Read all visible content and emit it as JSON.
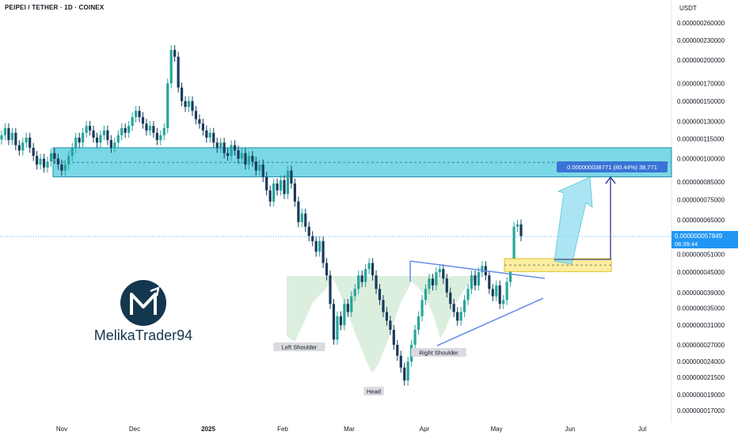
{
  "header": {
    "symbol_line": "PEIPEI / TETHER · 1D · COINEX",
    "quote_currency": "USDT"
  },
  "watermark": {
    "brand": "MelikaTrader94",
    "logo_icon": "m-arrow-logo-icon"
  },
  "price_tag": {
    "value": "0.000000057849",
    "countdown": "06:39:44"
  },
  "measure_label": "0.000000038771 (80.44%) 38,771",
  "colors": {
    "up": "#26a69a",
    "up_dark": "#1d9b8f",
    "down": "#1b3a5c",
    "zone_fill": "#4ec9de",
    "zone_border": "#1d8fa8",
    "target_box": "#3a73d6",
    "price_tag": "#2196f3",
    "trend_line": "#6b8fe8",
    "arrow_line": "#1f2a8c",
    "yellow_zone": "#fbeea0",
    "hs_fill": "#d6ecd9"
  },
  "chart_data": {
    "type": "candlestick",
    "title": "PEIPEI / TETHER · 1D · COINEX",
    "ylabel": "USDT",
    "y_scale": "log",
    "x_ticks": [
      "Nov",
      "Dec",
      "2025",
      "Feb",
      "Mar",
      "Apr",
      "May",
      "Jun",
      "Jul"
    ],
    "y_ticks": [
      "0.000000260000",
      "0.000000230000",
      "0.000000200000",
      "0.000000170000",
      "0.000000150000",
      "0.000000130000",
      "0.000000115000",
      "0.000000100000",
      "0.000000085000",
      "0.000000075000",
      "0.000000065000",
      "0.000000051000",
      "0.000000045000",
      "0.000000039000",
      "0.000000035000",
      "0.000000031000",
      "0.000000027000",
      "0.000000024000",
      "0.000000021500",
      "0.000000019000",
      "0.000000017000"
    ],
    "last_price": 5.7849e-08,
    "annotations": [
      "Left Shoulder",
      "Head",
      "Right Shoulder"
    ],
    "resistance_zone": [
      8.8e-08,
      1.08e-07
    ],
    "breakout_zone": [
      4.52e-08,
      4.95e-08
    ],
    "target_change": "0.000000038771 (80.44%) 38,771",
    "series": [
      {
        "values": [
          118,
          124,
          114,
          120,
          110,
          106,
          112,
          116,
          108,
          102,
          96,
          100,
          94,
          98,
          104,
          100,
          96,
          92,
          96,
          102,
          108,
          116,
          112,
          120,
          126,
          122,
          116,
          112,
          118,
          122,
          114,
          108,
          112,
          118,
          124,
          120,
          126,
          134,
          140,
          134,
          128,
          122,
          126,
          120,
          114,
          118,
          124,
          170,
          215,
          205,
          165,
          150,
          144,
          150,
          140,
          132,
          128,
          122,
          116,
          120,
          112,
          108,
          112,
          104,
          102,
          110,
          106,
          100,
          104,
          96,
          102,
          98,
          92,
          96,
          88,
          80,
          74,
          84,
          80,
          86,
          78,
          92,
          84,
          74,
          64,
          68,
          62,
          58,
          56,
          52,
          56,
          48,
          44,
          36,
          28,
          33,
          31,
          36,
          34,
          38,
          40,
          44,
          42,
          46,
          48,
          44,
          40,
          37,
          34,
          32,
          30,
          27,
          25,
          23,
          21,
          24,
          27,
          30,
          33,
          37,
          40,
          43,
          41,
          45,
          46,
          43,
          39,
          36,
          34,
          32,
          34,
          37,
          40,
          44,
          41,
          45,
          47,
          44,
          40,
          38,
          41,
          36,
          37,
          42,
          48,
          62,
          63,
          58
        ]
      }
    ]
  }
}
